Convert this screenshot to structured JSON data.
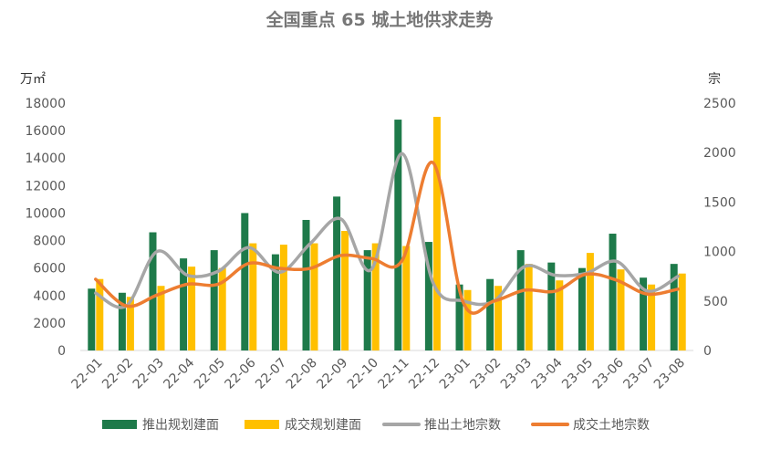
{
  "chart_data": {
    "type": "bar",
    "title": "全国重点 65 城土地供求走势",
    "ylabel_left": "万㎡",
    "ylabel_right": "宗",
    "ylim_left": [
      0,
      18000
    ],
    "ylim_right": [
      0,
      2500
    ],
    "left_ticks": [
      "0",
      "2000",
      "4000",
      "6000",
      "8000",
      "10000",
      "12000",
      "14000",
      "16000",
      "18000"
    ],
    "right_ticks": [
      "0",
      "500",
      "1000",
      "1500",
      "2000",
      "2500"
    ],
    "categories": [
      "22-01",
      "22-02",
      "22-03",
      "22-04",
      "22-05",
      "22-06",
      "22-07",
      "22-08",
      "22-09",
      "22-10",
      "22-11",
      "22-12",
      "23-01",
      "23-02",
      "23-03",
      "23-04",
      "23-05",
      "23-06",
      "23-07",
      "23-08"
    ],
    "series": [
      {
        "name": "推出规划建面",
        "type": "bar",
        "axis": "left",
        "color": "#1e7a4a",
        "values": [
          4500,
          4200,
          8600,
          6700,
          7300,
          10000,
          7000,
          9500,
          11200,
          7300,
          16800,
          7900,
          4800,
          5200,
          7300,
          6400,
          6000,
          8500,
          5300,
          6300
        ]
      },
      {
        "name": "成交规划建面",
        "type": "bar",
        "axis": "left",
        "color": "#ffc000",
        "values": [
          5200,
          3900,
          4700,
          6100,
          6000,
          7800,
          7700,
          7800,
          8700,
          7800,
          7600,
          17000,
          4400,
          4700,
          6300,
          5100,
          7100,
          5900,
          4800,
          5600
        ]
      },
      {
        "name": "推出土地宗数",
        "type": "line",
        "axis": "right",
        "color": "#a6a6a6",
        "values": [
          580,
          450,
          1000,
          760,
          800,
          1040,
          790,
          1080,
          1330,
          820,
          1990,
          690,
          500,
          500,
          850,
          760,
          780,
          900,
          600,
          750
        ]
      },
      {
        "name": "成交土地宗数",
        "type": "line",
        "axis": "right",
        "color": "#ed7d31",
        "values": [
          720,
          450,
          560,
          670,
          670,
          880,
          830,
          830,
          960,
          930,
          910,
          1900,
          480,
          500,
          610,
          600,
          770,
          710,
          570,
          620
        ]
      }
    ],
    "legend": "bottom"
  }
}
